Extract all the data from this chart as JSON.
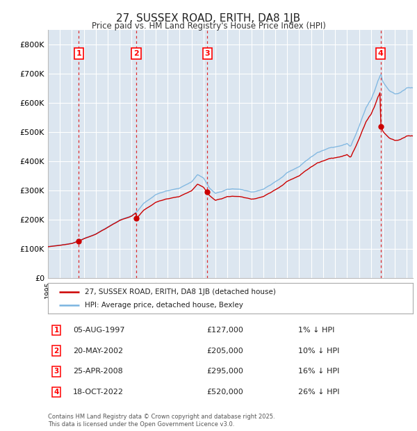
{
  "title": "27, SUSSEX ROAD, ERITH, DA8 1JB",
  "subtitle": "Price paid vs. HM Land Registry's House Price Index (HPI)",
  "ylim": [
    0,
    850000
  ],
  "yticks": [
    0,
    100000,
    200000,
    300000,
    400000,
    500000,
    600000,
    700000,
    800000
  ],
  "ytick_labels": [
    "£0",
    "£100K",
    "£200K",
    "£300K",
    "£400K",
    "£500K",
    "£600K",
    "£700K",
    "£800K"
  ],
  "background_color": "#ffffff",
  "plot_bg_color": "#dce6f0",
  "grid_color": "#ffffff",
  "hpi_color": "#7ab4e0",
  "price_color": "#cc0000",
  "transactions": [
    {
      "num": 1,
      "date": "05-AUG-1997",
      "price": 127000,
      "year": 1997.58,
      "pct": "1%"
    },
    {
      "num": 2,
      "date": "20-MAY-2002",
      "price": 205000,
      "year": 2002.38,
      "pct": "10%"
    },
    {
      "num": 3,
      "date": "25-APR-2008",
      "price": 295000,
      "year": 2008.32,
      "pct": "16%"
    },
    {
      "num": 4,
      "date": "18-OCT-2022",
      "price": 520000,
      "year": 2022.8,
      "pct": "26%"
    }
  ],
  "legend_label_price": "27, SUSSEX ROAD, ERITH, DA8 1JB (detached house)",
  "legend_label_hpi": "HPI: Average price, detached house, Bexley",
  "footer": "Contains HM Land Registry data © Crown copyright and database right 2025.\nThis data is licensed under the Open Government Licence v3.0.",
  "xlim_start": 1995.0,
  "xlim_end": 2025.5
}
